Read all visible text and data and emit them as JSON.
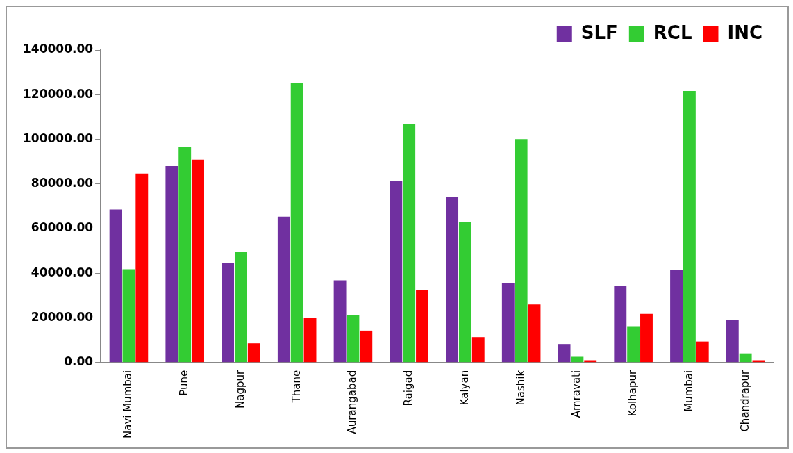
{
  "chart_data": {
    "type": "bar",
    "categories": [
      "Navi Mumbai",
      "Pune",
      "Nagpur",
      "Thane",
      "Aurangabad",
      "Raigad",
      "Kalyan",
      "Nashik",
      "Amravati",
      "Kolhapur",
      "Mumbai",
      "Chandrapur"
    ],
    "series": [
      {
        "name": "SLF",
        "color": "#7030a0",
        "values": [
          68600,
          88000,
          44700,
          65400,
          36800,
          81400,
          74200,
          35700,
          8300,
          34300,
          41600,
          18900
        ]
      },
      {
        "name": "RCL",
        "color": "#33cc33",
        "values": [
          41800,
          96600,
          49500,
          125100,
          21200,
          106700,
          62900,
          100100,
          2600,
          16300,
          121600,
          4100
        ]
      },
      {
        "name": "INC",
        "color": "#ff0000",
        "values": [
          84700,
          90900,
          8600,
          19900,
          14300,
          32500,
          11400,
          26000,
          1000,
          21800,
          9400,
          1000
        ]
      }
    ],
    "ylim": [
      0,
      140000
    ],
    "yticks": [
      {
        "value": 0,
        "label": "0.00"
      },
      {
        "value": 20000,
        "label": "20000.00"
      },
      {
        "value": 40000,
        "label": "40000.00"
      },
      {
        "value": 60000,
        "label": "60000.00"
      },
      {
        "value": 80000,
        "label": "80000.00"
      },
      {
        "value": 100000,
        "label": "100000.00"
      },
      {
        "value": 120000,
        "label": "120000.00"
      },
      {
        "value": 140000,
        "label": "140000.00"
      }
    ],
    "grid": false,
    "legend": "top right"
  }
}
